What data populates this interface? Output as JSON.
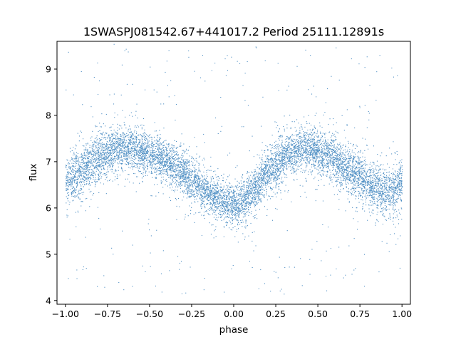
{
  "chart_data": {
    "type": "scatter",
    "title": "1SWASPJ081542.67+441017.2 Period 25111.12891s",
    "xlabel": "phase",
    "ylabel": "flux",
    "xlim": [
      -1.05,
      1.05
    ],
    "ylim": [
      3.92,
      9.6
    ],
    "x_ticks": [
      -1.0,
      -0.75,
      -0.5,
      -0.25,
      0.0,
      0.25,
      0.5,
      0.75,
      1.0
    ],
    "x_tick_labels": [
      "−1.00",
      "−0.75",
      "−0.50",
      "−0.25",
      "0.00",
      "0.25",
      "0.50",
      "0.75",
      "1.00"
    ],
    "y_ticks": [
      4,
      5,
      6,
      7,
      8,
      9
    ],
    "y_tick_labels": [
      "4",
      "5",
      "6",
      "7",
      "8",
      "9"
    ],
    "grid": false,
    "legend": "none",
    "marker_color": "#4f8fc4",
    "series": [
      {
        "phase": [
          -1.0,
          -0.9,
          -0.8,
          -0.7,
          -0.6,
          -0.5,
          -0.4,
          -0.3,
          -0.2,
          -0.1,
          0.0,
          0.1,
          0.2,
          0.3,
          0.4,
          0.5,
          0.6,
          0.7,
          0.8,
          0.9,
          1.0
        ],
        "flux_median": [
          6.55,
          6.85,
          7.1,
          7.28,
          7.3,
          7.2,
          7.0,
          6.75,
          6.45,
          6.2,
          6.05,
          6.3,
          6.75,
          7.1,
          7.3,
          7.25,
          7.05,
          6.8,
          6.55,
          6.35,
          6.5
        ],
        "flux_spread": [
          0.45,
          0.5,
          0.45,
          0.4,
          0.4,
          0.4,
          0.42,
          0.42,
          0.4,
          0.38,
          0.38,
          0.38,
          0.4,
          0.4,
          0.38,
          0.4,
          0.42,
          0.42,
          0.44,
          0.45,
          0.45
        ]
      }
    ]
  }
}
